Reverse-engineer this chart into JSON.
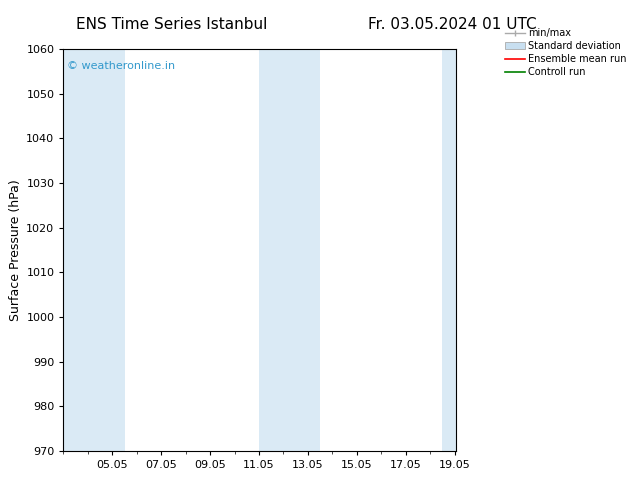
{
  "title_left": "ENS Time Series Istanbul",
  "title_right": "Fr. 03.05.2024 01 UTC",
  "ylabel": "Surface Pressure (hPa)",
  "ylim": [
    970,
    1060
  ],
  "yticks": [
    970,
    980,
    990,
    1000,
    1010,
    1020,
    1030,
    1040,
    1050,
    1060
  ],
  "xlim": [
    3.0,
    19.08
  ],
  "xtick_positions": [
    5,
    7,
    9,
    11,
    13,
    15,
    17,
    19
  ],
  "xtick_labels": [
    "05.05",
    "07.05",
    "09.05",
    "11.05",
    "13.05",
    "15.05",
    "17.05",
    "19.05"
  ],
  "background_color": "#ffffff",
  "plot_bg_color": "#ffffff",
  "shaded_bands": [
    {
      "x_start": 3.0,
      "x_end": 4.0
    },
    {
      "x_start": 4.0,
      "x_end": 5.5
    },
    {
      "x_start": 11.0,
      "x_end": 11.5
    },
    {
      "x_start": 11.5,
      "x_end": 13.5
    },
    {
      "x_start": 18.5,
      "x_end": 19.08
    }
  ],
  "band_color": "#daeaf5",
  "watermark_text": "© weatheronline.in",
  "watermark_color": "#3399cc",
  "legend_labels": [
    "min/max",
    "Standard deviation",
    "Ensemble mean run",
    "Controll run"
  ],
  "legend_colors": [
    "#999999",
    "#c8dff0",
    "#ff0000",
    "#008000"
  ],
  "font_size": 9,
  "title_font_size": 11,
  "tick_font_size": 8
}
